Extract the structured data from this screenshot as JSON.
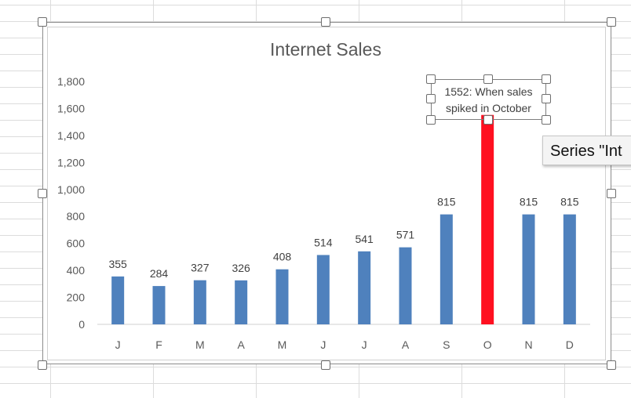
{
  "tooltip": {
    "text": "Series \"Int"
  },
  "annotation": {
    "line1": "1552: When sales",
    "line2": "spiked in October"
  },
  "chart_data": {
    "type": "bar",
    "title": "Internet Sales",
    "xlabel": "",
    "ylabel": "",
    "categories": [
      "J",
      "F",
      "M",
      "A",
      "M",
      "J",
      "J",
      "A",
      "S",
      "O",
      "N",
      "D"
    ],
    "values": [
      355,
      284,
      327,
      326,
      408,
      514,
      541,
      571,
      815,
      1552,
      815,
      815
    ],
    "data_labels": [
      "355",
      "284",
      "327",
      "326",
      "408",
      "514",
      "541",
      "571",
      "815",
      "",
      "815",
      "815"
    ],
    "ylim": [
      0,
      1800
    ],
    "yticks": [
      0,
      200,
      400,
      600,
      800,
      1000,
      1200,
      1400,
      1600,
      1800
    ],
    "ytick_labels": [
      "0",
      "200",
      "400",
      "600",
      "800",
      "1,000",
      "1,200",
      "1,400",
      "1,600",
      "1,800"
    ],
    "grid": false,
    "legend": "none",
    "bar_color": "#4f81bd",
    "highlight_index": 9,
    "highlight_color": "#ff1020"
  }
}
